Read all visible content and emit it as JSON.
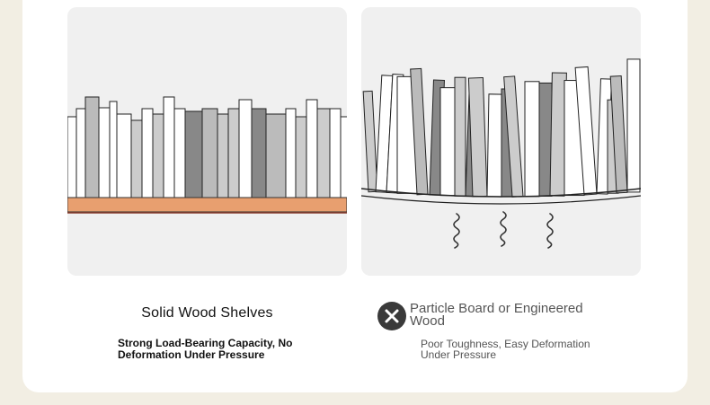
{
  "left": {
    "title": "Solid Wood Shelves",
    "description": "Strong Load-Bearing Capacity, No Deformation Under Pressure",
    "colors": {
      "shelf": "#e89f6f",
      "shelf_edge": "#8b3a2a",
      "panel_bg": "#f0f0f0"
    }
  },
  "right": {
    "title": "Particle Board or Engineered Wood",
    "description": "Poor Toughness, Easy Deformation Under Pressure",
    "icon": "close-icon",
    "colors": {
      "badge": "#3a3a3a"
    }
  }
}
